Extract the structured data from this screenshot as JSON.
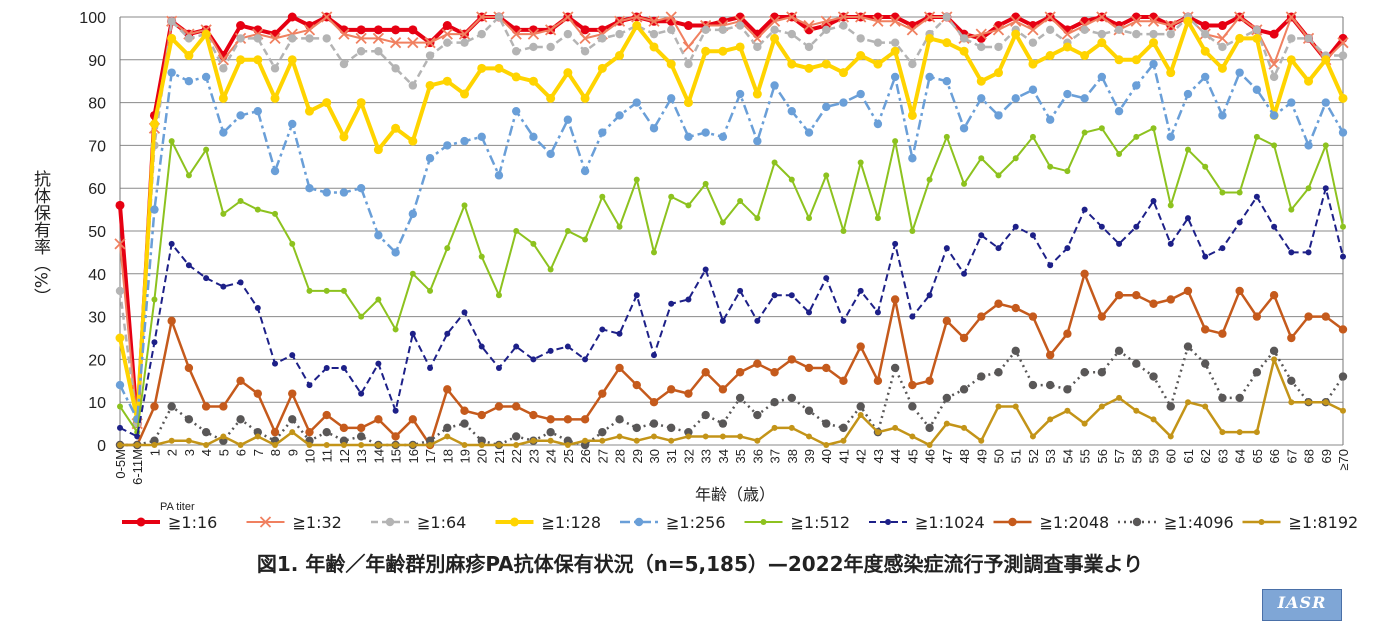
{
  "chart_data": {
    "type": "line",
    "title": "図1. 年齢／年齢群別麻疹PA抗体保有状況（n=5,185）—2022年度感染症流行予測調査事業より",
    "xlabel": "年齢（歳）",
    "ylabel": "抗体保有率（%）",
    "legend_title": "PA titer",
    "legend_position": "bottom",
    "ylim": [
      0,
      100
    ],
    "yticks": [
      0,
      10,
      20,
      30,
      40,
      50,
      60,
      70,
      80,
      90,
      100
    ],
    "grid": true,
    "categories": [
      "0-5M",
      "6-11M",
      "1",
      "2",
      "3",
      "4",
      "5",
      "6",
      "7",
      "8",
      "9",
      "10",
      "11",
      "12",
      "13",
      "14",
      "15",
      "16",
      "17",
      "18",
      "19",
      "20",
      "21",
      "22",
      "23",
      "24",
      "25",
      "26",
      "27",
      "28",
      "29",
      "30",
      "31",
      "32",
      "33",
      "34",
      "35",
      "36",
      "37",
      "38",
      "39",
      "40",
      "41",
      "42",
      "43",
      "44",
      "45",
      "46",
      "47",
      "48",
      "49",
      "50",
      "51",
      "52",
      "53",
      "54",
      "55",
      "56",
      "57",
      "58",
      "59",
      "60",
      "61",
      "62",
      "63",
      "64",
      "65",
      "66",
      "67",
      "68",
      "69",
      "≥70"
    ],
    "series": [
      {
        "name": "≧1:16",
        "color": "#e60012",
        "style": "solid",
        "width": 4,
        "marker": "circle",
        "values": [
          56,
          5,
          77,
          99,
          96,
          97,
          91,
          98,
          97,
          96,
          100,
          98,
          100,
          97,
          97,
          97,
          97,
          97,
          94,
          98,
          96,
          100,
          100,
          97,
          97,
          97,
          100,
          97,
          97,
          99,
          100,
          99,
          99,
          98,
          98,
          99,
          100,
          96,
          100,
          100,
          97,
          98,
          100,
          100,
          100,
          100,
          98,
          100,
          100,
          96,
          95,
          98,
          100,
          98,
          100,
          97,
          99,
          100,
          98,
          100,
          100,
          98,
          100,
          98,
          98,
          100,
          97,
          96,
          100,
          95,
          90,
          95
        ]
      },
      {
        "name": "≧1:32",
        "color": "#f08060",
        "style": "solid",
        "width": 2,
        "marker": "x",
        "values": [
          47,
          5,
          74,
          99,
          96,
          97,
          90,
          95,
          96,
          95,
          96,
          97,
          100,
          96,
          95,
          95,
          94,
          94,
          94,
          96,
          96,
          100,
          100,
          96,
          96,
          97,
          100,
          95,
          96,
          99,
          100,
          99,
          100,
          93,
          98,
          98,
          99,
          95,
          99,
          100,
          98,
          99,
          100,
          100,
          99,
          99,
          97,
          100,
          100,
          95,
          96,
          97,
          99,
          97,
          100,
          96,
          98,
          100,
          97,
          99,
          99,
          98,
          100,
          96,
          95,
          100,
          97,
          89,
          100,
          95,
          90,
          94
        ]
      },
      {
        "name": "≧1:64",
        "color": "#b4b4b4",
        "style": "dash",
        "width": 2.5,
        "marker": "circle",
        "values": [
          36,
          5,
          70,
          99,
          95,
          96,
          88,
          95,
          95,
          88,
          95,
          95,
          95,
          89,
          92,
          92,
          88,
          84,
          91,
          94,
          94,
          96,
          100,
          92,
          93,
          93,
          96,
          92,
          95,
          96,
          98,
          96,
          97,
          89,
          97,
          97,
          98,
          93,
          97,
          96,
          93,
          97,
          98,
          95,
          94,
          94,
          89,
          96,
          100,
          95,
          93,
          93,
          97,
          94,
          97,
          94,
          97,
          96,
          97,
          96,
          96,
          96,
          100,
          96,
          93,
          95,
          97,
          86,
          95,
          95,
          91,
          91
        ]
      },
      {
        "name": "≧1:128",
        "color": "#ffd400",
        "style": "solid",
        "width": 4,
        "marker": "circle",
        "values": [
          25,
          6,
          75,
          95,
          91,
          96,
          81,
          90,
          90,
          81,
          90,
          78,
          80,
          72,
          80,
          69,
          74,
          71,
          84,
          85,
          82,
          88,
          88,
          86,
          85,
          81,
          87,
          81,
          88,
          91,
          98,
          93,
          89,
          80,
          92,
          92,
          93,
          82,
          95,
          89,
          88,
          89,
          87,
          91,
          89,
          92,
          77,
          95,
          94,
          92,
          85,
          87,
          96,
          89,
          91,
          93,
          91,
          94,
          90,
          90,
          94,
          87,
          99,
          92,
          88,
          95,
          95,
          77,
          90,
          85,
          90,
          81
        ]
      },
      {
        "name": "≧1:256",
        "color": "#6a9fd8",
        "style": "dashdot",
        "width": 2.5,
        "marker": "circle",
        "values": [
          14,
          6,
          55,
          87,
          85,
          86,
          73,
          77,
          78,
          64,
          75,
          60,
          59,
          59,
          60,
          49,
          45,
          54,
          67,
          70,
          71,
          72,
          63,
          78,
          72,
          68,
          76,
          64,
          73,
          77,
          80,
          74,
          81,
          72,
          73,
          72,
          82,
          71,
          84,
          78,
          73,
          79,
          80,
          82,
          75,
          86,
          67,
          86,
          85,
          74,
          81,
          77,
          81,
          83,
          76,
          82,
          81,
          86,
          78,
          84,
          89,
          72,
          82,
          86,
          77,
          87,
          83,
          77,
          80,
          70,
          80,
          73
        ]
      },
      {
        "name": "≧1:512",
        "color": "#8dc21f",
        "style": "solid",
        "width": 2,
        "marker": "small",
        "values": [
          9,
          3,
          34,
          71,
          63,
          69,
          54,
          57,
          55,
          54,
          47,
          36,
          36,
          36,
          30,
          34,
          27,
          40,
          36,
          46,
          56,
          44,
          35,
          50,
          47,
          41,
          50,
          48,
          58,
          51,
          62,
          45,
          58,
          56,
          61,
          52,
          57,
          53,
          66,
          62,
          53,
          63,
          50,
          66,
          53,
          71,
          50,
          62,
          72,
          61,
          67,
          63,
          67,
          72,
          65,
          64,
          73,
          74,
          68,
          72,
          74,
          56,
          69,
          65,
          59,
          59,
          72,
          70,
          55,
          60,
          70,
          51
        ]
      },
      {
        "name": "≧1:1024",
        "color": "#1d2088",
        "style": "dash",
        "width": 2,
        "marker": "small",
        "values": [
          4,
          2,
          24,
          47,
          42,
          39,
          37,
          38,
          32,
          19,
          21,
          14,
          18,
          18,
          12,
          19,
          8,
          26,
          18,
          26,
          31,
          23,
          18,
          23,
          20,
          22,
          23,
          20,
          27,
          26,
          35,
          21,
          33,
          34,
          41,
          29,
          36,
          29,
          35,
          35,
          31,
          39,
          29,
          36,
          31,
          47,
          30,
          35,
          46,
          40,
          49,
          46,
          51,
          49,
          42,
          46,
          55,
          51,
          47,
          51,
          57,
          47,
          53,
          44,
          46,
          52,
          58,
          51,
          45,
          45,
          60,
          44
        ]
      },
      {
        "name": "≧1:2048",
        "color": "#c55a1c",
        "style": "solid",
        "width": 2.5,
        "marker": "circle",
        "values": [
          0,
          0,
          9,
          29,
          18,
          9,
          9,
          15,
          12,
          3,
          12,
          3,
          7,
          4,
          4,
          6,
          2,
          6,
          0,
          13,
          8,
          7,
          9,
          9,
          7,
          6,
          6,
          6,
          12,
          18,
          14,
          10,
          13,
          12,
          17,
          13,
          17,
          19,
          17,
          20,
          18,
          18,
          15,
          23,
          15,
          34,
          14,
          15,
          29,
          25,
          30,
          33,
          32,
          30,
          21,
          26,
          40,
          30,
          35,
          35,
          33,
          34,
          36,
          27,
          26,
          36,
          30,
          35,
          25,
          30,
          30,
          27
        ]
      },
      {
        "name": "≧1:4096",
        "color": "#595757",
        "style": "dot",
        "width": 2.5,
        "marker": "circle",
        "values": [
          0,
          0,
          1,
          9,
          6,
          3,
          1,
          6,
          3,
          1,
          6,
          1,
          3,
          1,
          2,
          0,
          0,
          0,
          1,
          4,
          5,
          1,
          0,
          2,
          1,
          3,
          1,
          0,
          3,
          6,
          4,
          5,
          4,
          3,
          7,
          5,
          11,
          7,
          10,
          11,
          8,
          5,
          4,
          9,
          3,
          18,
          9,
          4,
          11,
          13,
          16,
          17,
          22,
          14,
          14,
          13,
          17,
          17,
          22,
          19,
          16,
          9,
          23,
          19,
          11,
          11,
          17,
          22,
          15,
          10,
          10,
          16
        ]
      },
      {
        "name": "≧1:8192",
        "color": "#c39418",
        "style": "solid",
        "width": 2.5,
        "marker": "small",
        "values": [
          0,
          0,
          0,
          1,
          1,
          0,
          2,
          0,
          2,
          0,
          3,
          0,
          0,
          0,
          0,
          0,
          0,
          0,
          0,
          2,
          0,
          0,
          0,
          0,
          1,
          1,
          0,
          1,
          1,
          2,
          1,
          2,
          1,
          2,
          2,
          2,
          2,
          1,
          4,
          4,
          2,
          0,
          1,
          7,
          3,
          4,
          2,
          0,
          5,
          4,
          1,
          9,
          9,
          2,
          6,
          8,
          5,
          9,
          11,
          8,
          6,
          2,
          10,
          9,
          3,
          3,
          3,
          20,
          10,
          10,
          10,
          8
        ]
      }
    ]
  },
  "logo_text": "IASR"
}
